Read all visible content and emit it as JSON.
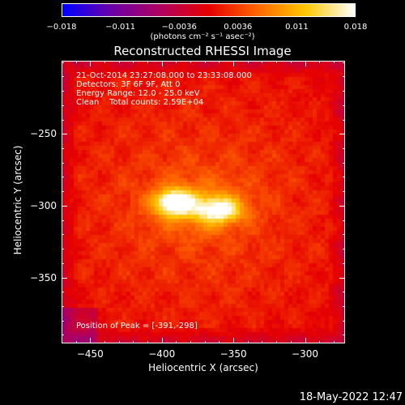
{
  "colors": {
    "background": "#000000",
    "foreground": "#ffffff",
    "colormap": [
      "#0000ff",
      "#6a00a8",
      "#b00060",
      "#e60000",
      "#ff6600",
      "#ffc800",
      "#ffffff"
    ]
  },
  "chart_data": {
    "type": "heatmap",
    "title": "Reconstructed RHESSI Image",
    "xlabel": "Heliocentric X (arcsec)",
    "ylabel": "Heliocentric Y (arcsec)",
    "xlim": [
      -470,
      -272
    ],
    "ylim": [
      -396,
      -199
    ],
    "x_ticks": [
      -450,
      -400,
      -350,
      -300
    ],
    "y_ticks": [
      -250,
      -300,
      -350
    ],
    "colorbar": {
      "ticks": [
        "-0.018",
        "-0.011",
        "-0.0036",
        "0.0036",
        "0.011",
        "0.018"
      ],
      "range": [
        -0.018,
        0.018
      ],
      "units": "(photons cm⁻² s⁻¹ asec⁻²)"
    },
    "annotations": {
      "time": "21-Oct-2014 23:27:08.000 to 23:33:08.000",
      "detectors": "Detectors: 3F 6F 9F, Att 0",
      "energy": "Energy Range: 12.0 - 25.0 keV",
      "clean": "Clean    Total counts: 2.59E+04",
      "peak": "Position of Peak = [-391,-298]"
    },
    "sources": [
      {
        "x": -391,
        "y": -298,
        "peak": 0.018
      },
      {
        "x": -360,
        "y": -303,
        "peak": 0.014
      }
    ]
  },
  "timestamp": "18-May-2022 12:47"
}
